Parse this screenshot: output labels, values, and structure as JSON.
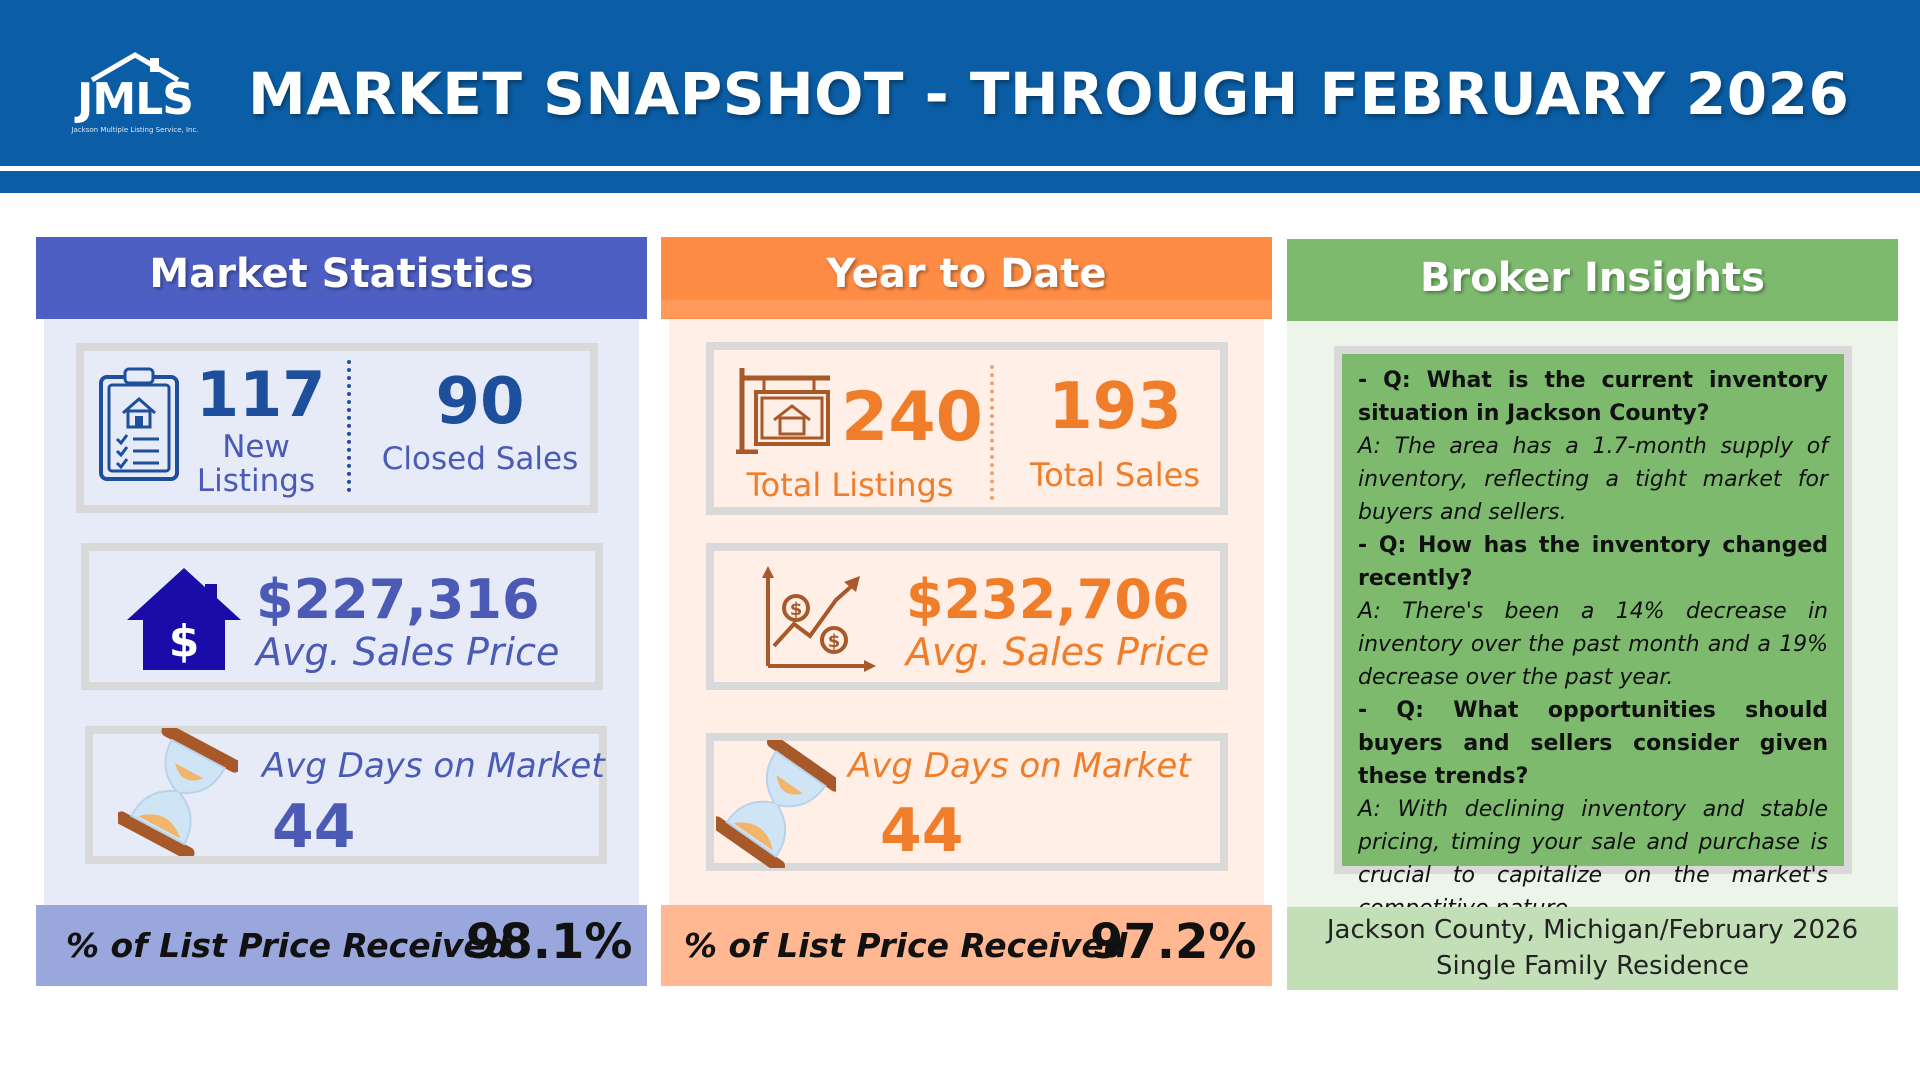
{
  "header": {
    "logo_text": "JMLS",
    "logo_subtext": "Jackson Multiple Listing Service, Inc.",
    "title": "MARKET SNAPSHOT - THROUGH FEBRUARY 2026"
  },
  "market_statistics": {
    "heading": "Market Statistics",
    "new_listings_value": "117",
    "new_listings_label_1": "New",
    "new_listings_label_2": "Listings",
    "closed_sales_value": "90",
    "closed_sales_label": "Closed Sales",
    "avg_price_value": "$227,316",
    "avg_price_label": "Avg. Sales Price",
    "dom_label": "Avg Days on Market",
    "dom_value": "44",
    "list_price_label": "% of List Price Received",
    "list_price_value": "98.1%"
  },
  "year_to_date": {
    "heading": "Year to Date",
    "total_listings_value": "240",
    "total_listings_label": "Total Listings",
    "total_sales_value": "193",
    "total_sales_label": "Total Sales",
    "avg_price_value": "$232,706",
    "avg_price_label": "Avg. Sales Price",
    "dom_label": "Avg Days on Market",
    "dom_value": "44",
    "list_price_label": "% of List Price Received",
    "list_price_value": "97.2%"
  },
  "broker_insights": {
    "heading": "Broker Insights",
    "items": [
      {
        "q": "- Q: What is the current inventory situation in Jackson County?",
        "a": "A: The area has a 1.7-month supply of inventory, reflecting a tight market for buyers and sellers."
      },
      {
        "q": "- Q: How has the inventory changed recently?",
        "a": "A: There's been a 14% decrease in inventory over the past month and a 19% decrease over the past year."
      },
      {
        "q": "- Q: What opportunities should buyers and sellers consider given these trends?",
        "a": "A: With declining inventory and stable pricing, timing your sale and purchase is crucial to capitalize on the market's competitive nature."
      }
    ],
    "footer_line_1": "Jackson County, Michigan/February 2026",
    "footer_line_2": "Single Family Residence"
  },
  "colors": {
    "header_blue": "#0b5ea6",
    "stats_blue": "#4e5fc4",
    "ytd_orange": "#ff8c45",
    "broker_green": "#7dba6e"
  }
}
